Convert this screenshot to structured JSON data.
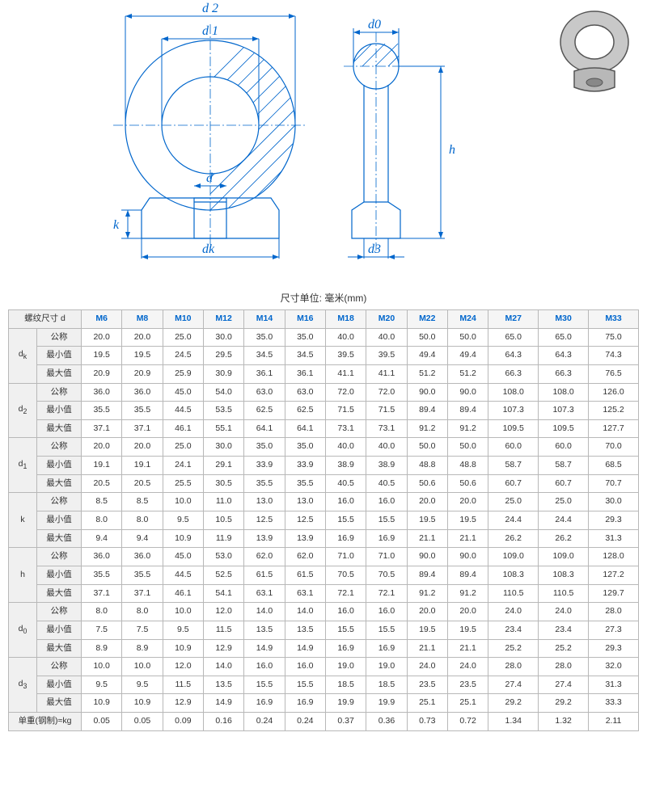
{
  "unit_label": "尺寸单位: 毫米(mm)",
  "header": {
    "thread_size": "螺纹尺寸\nd",
    "sizes": [
      "M6",
      "M8",
      "M10",
      "M12",
      "M14",
      "M16",
      "M18",
      "M20",
      "M22",
      "M24",
      "M27",
      "M30",
      "M33"
    ]
  },
  "row_labels": {
    "nominal": "公称",
    "min": "最小值",
    "max": "最大值"
  },
  "groups": [
    {
      "name": "d_k",
      "subs": [
        {
          "key": "nominal",
          "vals": [
            "20.0",
            "20.0",
            "25.0",
            "30.0",
            "35.0",
            "35.0",
            "40.0",
            "40.0",
            "50.0",
            "50.0",
            "65.0",
            "65.0",
            "75.0"
          ]
        },
        {
          "key": "min",
          "vals": [
            "19.5",
            "19.5",
            "24.5",
            "29.5",
            "34.5",
            "34.5",
            "39.5",
            "39.5",
            "49.4",
            "49.4",
            "64.3",
            "64.3",
            "74.3"
          ]
        },
        {
          "key": "max",
          "vals": [
            "20.9",
            "20.9",
            "25.9",
            "30.9",
            "36.1",
            "36.1",
            "41.1",
            "41.1",
            "51.2",
            "51.2",
            "66.3",
            "66.3",
            "76.5"
          ]
        }
      ]
    },
    {
      "name": "d_2",
      "subs": [
        {
          "key": "nominal",
          "vals": [
            "36.0",
            "36.0",
            "45.0",
            "54.0",
            "63.0",
            "63.0",
            "72.0",
            "72.0",
            "90.0",
            "90.0",
            "108.0",
            "108.0",
            "126.0"
          ]
        },
        {
          "key": "min",
          "vals": [
            "35.5",
            "35.5",
            "44.5",
            "53.5",
            "62.5",
            "62.5",
            "71.5",
            "71.5",
            "89.4",
            "89.4",
            "107.3",
            "107.3",
            "125.2"
          ]
        },
        {
          "key": "max",
          "vals": [
            "37.1",
            "37.1",
            "46.1",
            "55.1",
            "64.1",
            "64.1",
            "73.1",
            "73.1",
            "91.2",
            "91.2",
            "109.5",
            "109.5",
            "127.7"
          ]
        }
      ]
    },
    {
      "name": "d_1",
      "subs": [
        {
          "key": "nominal",
          "vals": [
            "20.0",
            "20.0",
            "25.0",
            "30.0",
            "35.0",
            "35.0",
            "40.0",
            "40.0",
            "50.0",
            "50.0",
            "60.0",
            "60.0",
            "70.0"
          ]
        },
        {
          "key": "min",
          "vals": [
            "19.1",
            "19.1",
            "24.1",
            "29.1",
            "33.9",
            "33.9",
            "38.9",
            "38.9",
            "48.8",
            "48.8",
            "58.7",
            "58.7",
            "68.5"
          ]
        },
        {
          "key": "max",
          "vals": [
            "20.5",
            "20.5",
            "25.5",
            "30.5",
            "35.5",
            "35.5",
            "40.5",
            "40.5",
            "50.6",
            "50.6",
            "60.7",
            "60.7",
            "70.7"
          ]
        }
      ]
    },
    {
      "name": "k",
      "subs": [
        {
          "key": "nominal",
          "vals": [
            "8.5",
            "8.5",
            "10.0",
            "11.0",
            "13.0",
            "13.0",
            "16.0",
            "16.0",
            "20.0",
            "20.0",
            "25.0",
            "25.0",
            "30.0"
          ]
        },
        {
          "key": "min",
          "vals": [
            "8.0",
            "8.0",
            "9.5",
            "10.5",
            "12.5",
            "12.5",
            "15.5",
            "15.5",
            "19.5",
            "19.5",
            "24.4",
            "24.4",
            "29.3"
          ]
        },
        {
          "key": "max",
          "vals": [
            "9.4",
            "9.4",
            "10.9",
            "11.9",
            "13.9",
            "13.9",
            "16.9",
            "16.9",
            "21.1",
            "21.1",
            "26.2",
            "26.2",
            "31.3"
          ]
        }
      ]
    },
    {
      "name": "h",
      "subs": [
        {
          "key": "nominal",
          "vals": [
            "36.0",
            "36.0",
            "45.0",
            "53.0",
            "62.0",
            "62.0",
            "71.0",
            "71.0",
            "90.0",
            "90.0",
            "109.0",
            "109.0",
            "128.0"
          ]
        },
        {
          "key": "min",
          "vals": [
            "35.5",
            "35.5",
            "44.5",
            "52.5",
            "61.5",
            "61.5",
            "70.5",
            "70.5",
            "89.4",
            "89.4",
            "108.3",
            "108.3",
            "127.2"
          ]
        },
        {
          "key": "max",
          "vals": [
            "37.1",
            "37.1",
            "46.1",
            "54.1",
            "63.1",
            "63.1",
            "72.1",
            "72.1",
            "91.2",
            "91.2",
            "110.5",
            "110.5",
            "129.7"
          ]
        }
      ]
    },
    {
      "name": "d_0",
      "subs": [
        {
          "key": "nominal",
          "vals": [
            "8.0",
            "8.0",
            "10.0",
            "12.0",
            "14.0",
            "14.0",
            "16.0",
            "16.0",
            "20.0",
            "20.0",
            "24.0",
            "24.0",
            "28.0"
          ]
        },
        {
          "key": "min",
          "vals": [
            "7.5",
            "7.5",
            "9.5",
            "11.5",
            "13.5",
            "13.5",
            "15.5",
            "15.5",
            "19.5",
            "19.5",
            "23.4",
            "23.4",
            "27.3"
          ]
        },
        {
          "key": "max",
          "vals": [
            "8.9",
            "8.9",
            "10.9",
            "12.9",
            "14.9",
            "14.9",
            "16.9",
            "16.9",
            "21.1",
            "21.1",
            "25.2",
            "25.2",
            "29.3"
          ]
        }
      ]
    },
    {
      "name": "d_3",
      "subs": [
        {
          "key": "nominal",
          "vals": [
            "10.0",
            "10.0",
            "12.0",
            "14.0",
            "16.0",
            "16.0",
            "19.0",
            "19.0",
            "24.0",
            "24.0",
            "28.0",
            "28.0",
            "32.0"
          ]
        },
        {
          "key": "min",
          "vals": [
            "9.5",
            "9.5",
            "11.5",
            "13.5",
            "15.5",
            "15.5",
            "18.5",
            "18.5",
            "23.5",
            "23.5",
            "27.4",
            "27.4",
            "31.3"
          ]
        },
        {
          "key": "max",
          "vals": [
            "10.9",
            "10.9",
            "12.9",
            "14.9",
            "16.9",
            "16.9",
            "19.9",
            "19.9",
            "25.1",
            "25.1",
            "29.2",
            "29.2",
            "33.3"
          ]
        }
      ]
    }
  ],
  "weight_row": {
    "label": "单重(钢制)≈kg",
    "vals": [
      "0.05",
      "0.05",
      "0.09",
      "0.16",
      "0.24",
      "0.24",
      "0.37",
      "0.36",
      "0.73",
      "0.72",
      "1.34",
      "1.32",
      "2.11"
    ]
  },
  "diagram": {
    "labels": {
      "d2": "d 2",
      "d1": "d 1",
      "d": "d",
      "dk": "dk",
      "k": "k",
      "d0": "d0",
      "d3": "d3",
      "h": "h"
    },
    "colors": {
      "line": "#0066cc",
      "text": "#0066cc"
    }
  }
}
